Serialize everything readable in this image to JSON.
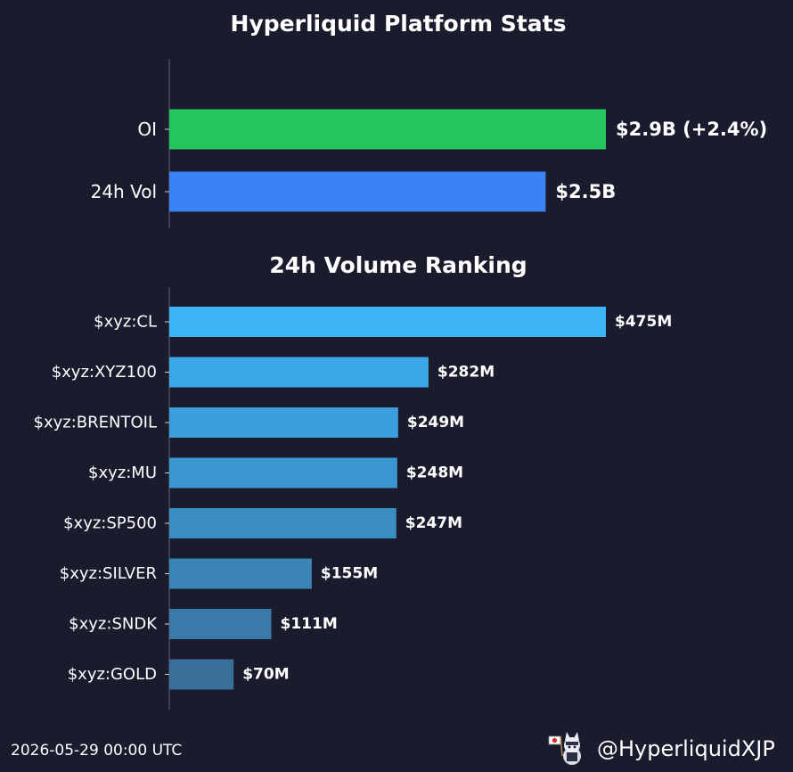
{
  "footer": {
    "timestamp": "2026-05-29 00:00 UTC",
    "handle": "@HyperliquidXJP",
    "mascot_icon": "cat-mascot-with-flag-icon"
  },
  "chart_data": [
    {
      "type": "bar",
      "orientation": "horizontal",
      "title": "Hyperliquid Platform Stats",
      "categories": [
        "OI",
        "24h Vol"
      ],
      "values": [
        2.9,
        2.5
      ],
      "unit": "billion USD",
      "data_labels": [
        "$2.9B (+2.4%)",
        "$2.5B"
      ],
      "colors": [
        "#22c55e",
        "#3b82f6"
      ],
      "grid": false
    },
    {
      "type": "bar",
      "orientation": "horizontal",
      "title": "24h Volume Ranking",
      "categories": [
        "$xyz:CL",
        "$xyz:XYZ100",
        "$xyz:BRENTOIL",
        "$xyz:MU",
        "$xyz:SP500",
        "$xyz:SILVER",
        "$xyz:SNDK",
        "$xyz:GOLD"
      ],
      "values": [
        475,
        282,
        249,
        248,
        247,
        155,
        111,
        70
      ],
      "unit": "million USD",
      "data_labels": [
        "$475M",
        "$282M",
        "$249M",
        "$248M",
        "$247M",
        "$155M",
        "$111M",
        "$70M"
      ],
      "colors": [
        "#3db3f5",
        "#3ca8e8",
        "#3c9fdc",
        "#3b97d0",
        "#3b8ec3",
        "#3a84b6",
        "#3a7aa8",
        "#396f9a"
      ],
      "grid": false
    }
  ]
}
